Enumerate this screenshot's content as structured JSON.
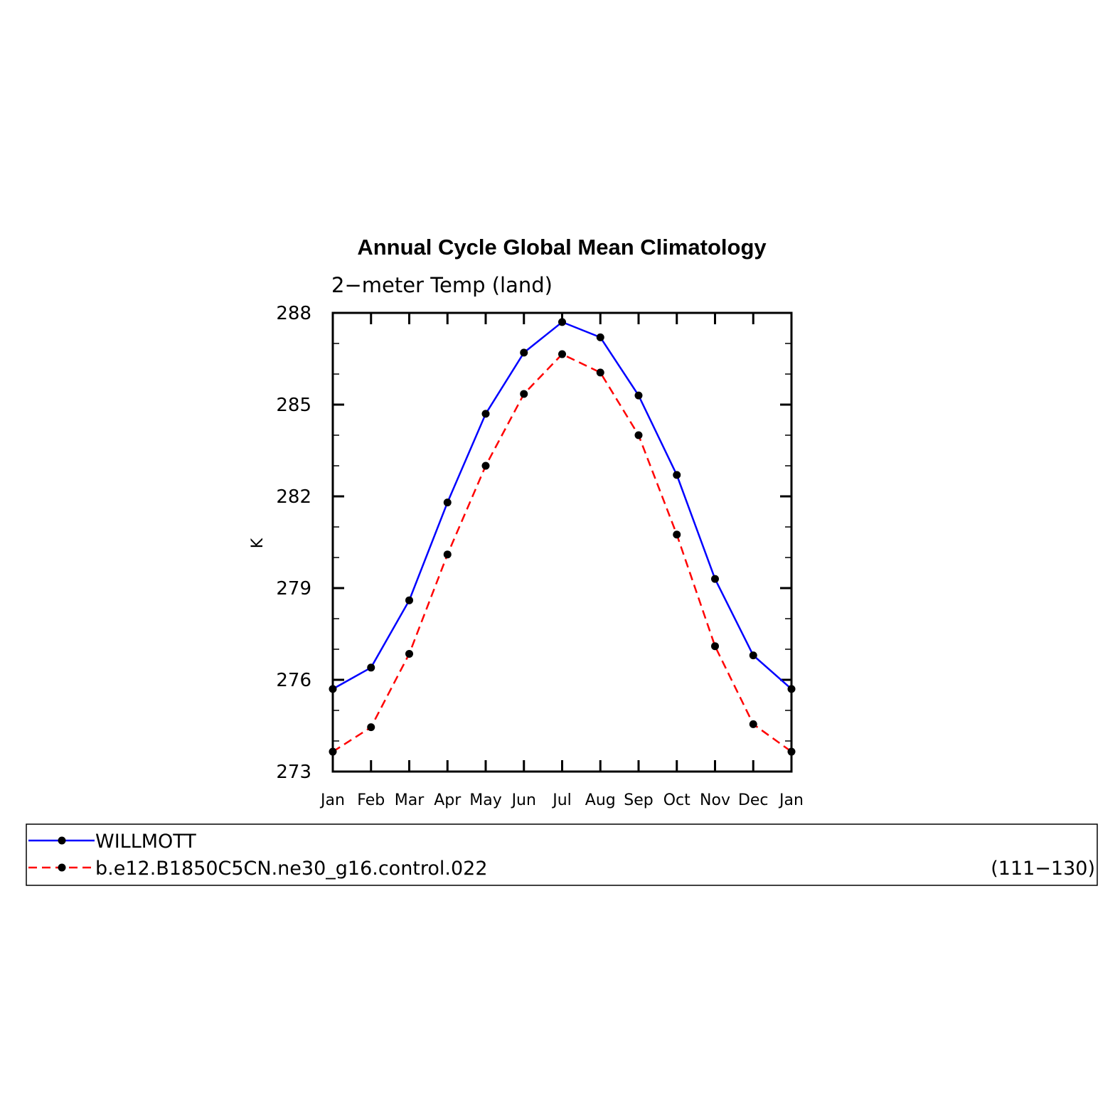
{
  "chart_data": {
    "type": "line",
    "title": "Annual Cycle Global Mean Climatology",
    "subtitle": "2−meter Temp (land)",
    "ylabel": "K",
    "xlabel": "",
    "categories": [
      "Jan",
      "Feb",
      "Mar",
      "Apr",
      "May",
      "Jun",
      "Jul",
      "Aug",
      "Sep",
      "Oct",
      "Nov",
      "Dec",
      "Jan"
    ],
    "ylim": [
      273,
      288
    ],
    "yticks": [
      273,
      276,
      279,
      282,
      285,
      288
    ],
    "grid": false,
    "legend_position": "bottom",
    "series": [
      {
        "name": "WILLMOTT",
        "color": "#0000ff",
        "line_style": "solid",
        "marker": "dot",
        "values": [
          275.7,
          276.4,
          278.6,
          281.8,
          284.7,
          286.7,
          287.7,
          287.2,
          285.3,
          282.7,
          279.3,
          276.8,
          275.7
        ]
      },
      {
        "name": "b.e12.B1850C5CN.ne30_g16.control.022",
        "color": "#ff0000",
        "line_style": "dashed",
        "marker": "dot",
        "values": [
          273.65,
          274.45,
          276.85,
          280.1,
          283.0,
          285.35,
          286.65,
          286.05,
          284.0,
          280.75,
          277.1,
          274.55,
          273.65
        ]
      }
    ],
    "legend_note": "(111−130)"
  }
}
